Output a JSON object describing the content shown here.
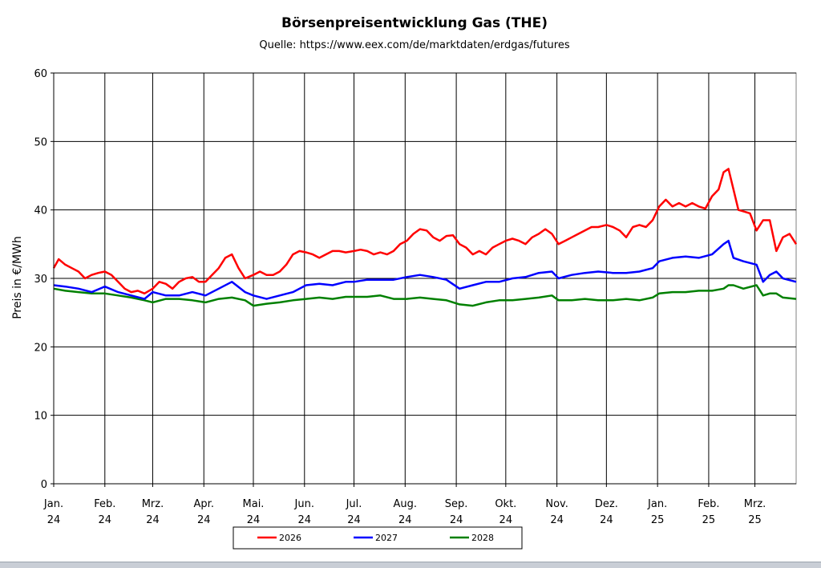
{
  "chart_data": {
    "type": "line",
    "title": "Börsenpreisentwicklung Gas (THE)",
    "subtitle": "Quelle: https://www.eex.com/de/marktdaten/erdgas/futures",
    "xlabel": "",
    "ylabel": "Preis in €/MWh",
    "ylim": [
      0,
      60
    ],
    "yticks": [
      0,
      10,
      20,
      30,
      40,
      50,
      60
    ],
    "x_range": [
      "2024-01-01",
      "2025-03-26"
    ],
    "month_ticks": [
      {
        "date": "2024-01-01",
        "month": "Jan.",
        "year": "24"
      },
      {
        "date": "2024-02-01",
        "month": "Feb.",
        "year": "24"
      },
      {
        "date": "2024-03-01",
        "month": "Mrz.",
        "year": "24"
      },
      {
        "date": "2024-04-01",
        "month": "Apr.",
        "year": "24"
      },
      {
        "date": "2024-05-01",
        "month": "Mai.",
        "year": "24"
      },
      {
        "date": "2024-06-01",
        "month": "Jun.",
        "year": "24"
      },
      {
        "date": "2024-07-01",
        "month": "Jul.",
        "year": "24"
      },
      {
        "date": "2024-08-01",
        "month": "Aug.",
        "year": "24"
      },
      {
        "date": "2024-09-01",
        "month": "Sep.",
        "year": "24"
      },
      {
        "date": "2024-10-01",
        "month": "Okt.",
        "year": "24"
      },
      {
        "date": "2024-11-01",
        "month": "Nov.",
        "year": "24"
      },
      {
        "date": "2024-12-01",
        "month": "Dez.",
        "year": "24"
      },
      {
        "date": "2025-01-01",
        "month": "Jan.",
        "year": "25"
      },
      {
        "date": "2025-02-01",
        "month": "Feb.",
        "year": "25"
      },
      {
        "date": "2025-03-01",
        "month": "Mrz.",
        "year": "25"
      }
    ],
    "grid": true,
    "legend_position": "bottom-center",
    "series": [
      {
        "name": "2026",
        "color": "#ff0000",
        "x": [
          "2024-01-01",
          "2024-01-04",
          "2024-01-08",
          "2024-01-12",
          "2024-01-16",
          "2024-01-20",
          "2024-01-24",
          "2024-01-28",
          "2024-02-01",
          "2024-02-05",
          "2024-02-09",
          "2024-02-13",
          "2024-02-17",
          "2024-02-21",
          "2024-02-25",
          "2024-03-01",
          "2024-03-05",
          "2024-03-09",
          "2024-03-13",
          "2024-03-17",
          "2024-03-21",
          "2024-03-25",
          "2024-03-29",
          "2024-04-02",
          "2024-04-06",
          "2024-04-10",
          "2024-04-14",
          "2024-04-18",
          "2024-04-22",
          "2024-04-26",
          "2024-05-01",
          "2024-05-05",
          "2024-05-09",
          "2024-05-13",
          "2024-05-17",
          "2024-05-21",
          "2024-05-25",
          "2024-05-29",
          "2024-06-02",
          "2024-06-06",
          "2024-06-10",
          "2024-06-14",
          "2024-06-18",
          "2024-06-22",
          "2024-06-26",
          "2024-07-01",
          "2024-07-05",
          "2024-07-09",
          "2024-07-13",
          "2024-07-17",
          "2024-07-21",
          "2024-07-25",
          "2024-07-29",
          "2024-08-02",
          "2024-08-06",
          "2024-08-10",
          "2024-08-14",
          "2024-08-18",
          "2024-08-22",
          "2024-08-26",
          "2024-08-30",
          "2024-09-03",
          "2024-09-07",
          "2024-09-11",
          "2024-09-15",
          "2024-09-19",
          "2024-09-23",
          "2024-09-27",
          "2024-10-01",
          "2024-10-05",
          "2024-10-09",
          "2024-10-13",
          "2024-10-17",
          "2024-10-21",
          "2024-10-25",
          "2024-10-29",
          "2024-11-02",
          "2024-11-06",
          "2024-11-10",
          "2024-11-14",
          "2024-11-18",
          "2024-11-22",
          "2024-11-26",
          "2024-12-01",
          "2024-12-05",
          "2024-12-09",
          "2024-12-13",
          "2024-12-17",
          "2024-12-21",
          "2024-12-25",
          "2024-12-29",
          "2025-01-02",
          "2025-01-06",
          "2025-01-10",
          "2025-01-14",
          "2025-01-18",
          "2025-01-22",
          "2025-01-26",
          "2025-01-30",
          "2025-02-03",
          "2025-02-07",
          "2025-02-10",
          "2025-02-13",
          "2025-02-16",
          "2025-02-19",
          "2025-02-22",
          "2025-02-26",
          "2025-03-02",
          "2025-03-06",
          "2025-03-10",
          "2025-03-14",
          "2025-03-18",
          "2025-03-22",
          "2025-03-26"
        ],
        "values": [
          31.5,
          32.8,
          32.0,
          31.5,
          31.0,
          30.0,
          30.5,
          30.8,
          31.0,
          30.5,
          29.5,
          28.5,
          28.0,
          28.2,
          27.8,
          28.5,
          29.5,
          29.2,
          28.5,
          29.5,
          30.0,
          30.2,
          29.5,
          29.5,
          30.5,
          31.5,
          33.0,
          33.5,
          31.5,
          30.0,
          30.5,
          31.0,
          30.5,
          30.5,
          31.0,
          32.0,
          33.5,
          34.0,
          33.8,
          33.5,
          33.0,
          33.5,
          34.0,
          34.0,
          33.8,
          34.0,
          34.2,
          34.0,
          33.5,
          33.8,
          33.5,
          34.0,
          35.0,
          35.5,
          36.5,
          37.2,
          37.0,
          36.0,
          35.5,
          36.2,
          36.3,
          35.0,
          34.5,
          33.5,
          34.0,
          33.5,
          34.5,
          35.0,
          35.5,
          35.8,
          35.5,
          35.0,
          36.0,
          36.5,
          37.2,
          36.5,
          35.0,
          35.5,
          36.0,
          36.5,
          37.0,
          37.5,
          37.5,
          37.8,
          37.5,
          37.0,
          36.0,
          37.5,
          37.8,
          37.5,
          38.5,
          40.5,
          41.5,
          40.5,
          41.0,
          40.5,
          41.0,
          40.5,
          40.2,
          42.0,
          43.0,
          45.5,
          46.0,
          43.0,
          40.0,
          39.8,
          39.5,
          37.0,
          38.5,
          38.5,
          34.0,
          36.0,
          36.5,
          35.0
        ]
      },
      {
        "name": "2027",
        "color": "#0000ff",
        "x": [
          "2024-01-01",
          "2024-01-08",
          "2024-01-16",
          "2024-01-24",
          "2024-02-01",
          "2024-02-09",
          "2024-02-17",
          "2024-02-25",
          "2024-03-01",
          "2024-03-09",
          "2024-03-17",
          "2024-03-25",
          "2024-04-02",
          "2024-04-10",
          "2024-04-18",
          "2024-04-26",
          "2024-05-01",
          "2024-05-09",
          "2024-05-17",
          "2024-05-25",
          "2024-06-02",
          "2024-06-10",
          "2024-06-18",
          "2024-06-26",
          "2024-07-01",
          "2024-07-09",
          "2024-07-17",
          "2024-07-25",
          "2024-08-02",
          "2024-08-10",
          "2024-08-18",
          "2024-08-26",
          "2024-09-03",
          "2024-09-11",
          "2024-09-19",
          "2024-09-27",
          "2024-10-05",
          "2024-10-13",
          "2024-10-21",
          "2024-10-29",
          "2024-11-02",
          "2024-11-10",
          "2024-11-18",
          "2024-11-26",
          "2024-12-05",
          "2024-12-13",
          "2024-12-21",
          "2024-12-29",
          "2025-01-02",
          "2025-01-10",
          "2025-01-18",
          "2025-01-26",
          "2025-02-03",
          "2025-02-10",
          "2025-02-13",
          "2025-02-16",
          "2025-02-22",
          "2025-03-02",
          "2025-03-06",
          "2025-03-10",
          "2025-03-14",
          "2025-03-18",
          "2025-03-26"
        ],
        "values": [
          29.0,
          28.8,
          28.5,
          28.0,
          28.8,
          28.0,
          27.5,
          27.0,
          28.0,
          27.5,
          27.5,
          28.0,
          27.5,
          28.5,
          29.5,
          28.0,
          27.5,
          27.0,
          27.5,
          28.0,
          29.0,
          29.2,
          29.0,
          29.5,
          29.5,
          29.8,
          29.8,
          29.8,
          30.2,
          30.5,
          30.2,
          29.8,
          28.5,
          29.0,
          29.5,
          29.5,
          30.0,
          30.2,
          30.8,
          31.0,
          30.0,
          30.5,
          30.8,
          31.0,
          30.8,
          30.8,
          31.0,
          31.5,
          32.5,
          33.0,
          33.2,
          33.0,
          33.5,
          35.0,
          35.5,
          33.0,
          32.5,
          32.0,
          29.5,
          30.5,
          31.0,
          30.0,
          29.5
        ]
      },
      {
        "name": "2028",
        "color": "#008000",
        "x": [
          "2024-01-01",
          "2024-01-08",
          "2024-01-16",
          "2024-01-24",
          "2024-02-01",
          "2024-02-09",
          "2024-02-17",
          "2024-02-25",
          "2024-03-01",
          "2024-03-09",
          "2024-03-17",
          "2024-03-25",
          "2024-04-02",
          "2024-04-10",
          "2024-04-18",
          "2024-04-26",
          "2024-05-01",
          "2024-05-09",
          "2024-05-17",
          "2024-05-25",
          "2024-06-02",
          "2024-06-10",
          "2024-06-18",
          "2024-06-26",
          "2024-07-01",
          "2024-07-09",
          "2024-07-17",
          "2024-07-25",
          "2024-08-02",
          "2024-08-10",
          "2024-08-18",
          "2024-08-26",
          "2024-09-03",
          "2024-09-11",
          "2024-09-19",
          "2024-09-27",
          "2024-10-05",
          "2024-10-13",
          "2024-10-21",
          "2024-10-29",
          "2024-11-02",
          "2024-11-10",
          "2024-11-18",
          "2024-11-26",
          "2024-12-05",
          "2024-12-13",
          "2024-12-21",
          "2024-12-29",
          "2025-01-02",
          "2025-01-10",
          "2025-01-18",
          "2025-01-26",
          "2025-02-03",
          "2025-02-10",
          "2025-02-13",
          "2025-02-16",
          "2025-02-22",
          "2025-03-02",
          "2025-03-06",
          "2025-03-10",
          "2025-03-14",
          "2025-03-18",
          "2025-03-26"
        ],
        "values": [
          28.5,
          28.2,
          28.0,
          27.8,
          27.8,
          27.5,
          27.2,
          26.8,
          26.5,
          27.0,
          27.0,
          26.8,
          26.5,
          27.0,
          27.2,
          26.8,
          26.0,
          26.3,
          26.5,
          26.8,
          27.0,
          27.2,
          27.0,
          27.3,
          27.3,
          27.3,
          27.5,
          27.0,
          27.0,
          27.2,
          27.0,
          26.8,
          26.2,
          26.0,
          26.5,
          26.8,
          26.8,
          27.0,
          27.2,
          27.5,
          26.8,
          26.8,
          27.0,
          26.8,
          26.8,
          27.0,
          26.8,
          27.2,
          27.8,
          28.0,
          28.0,
          28.2,
          28.2,
          28.5,
          29.0,
          29.0,
          28.5,
          29.0,
          27.5,
          27.8,
          27.8,
          27.2,
          27.0
        ]
      }
    ]
  }
}
